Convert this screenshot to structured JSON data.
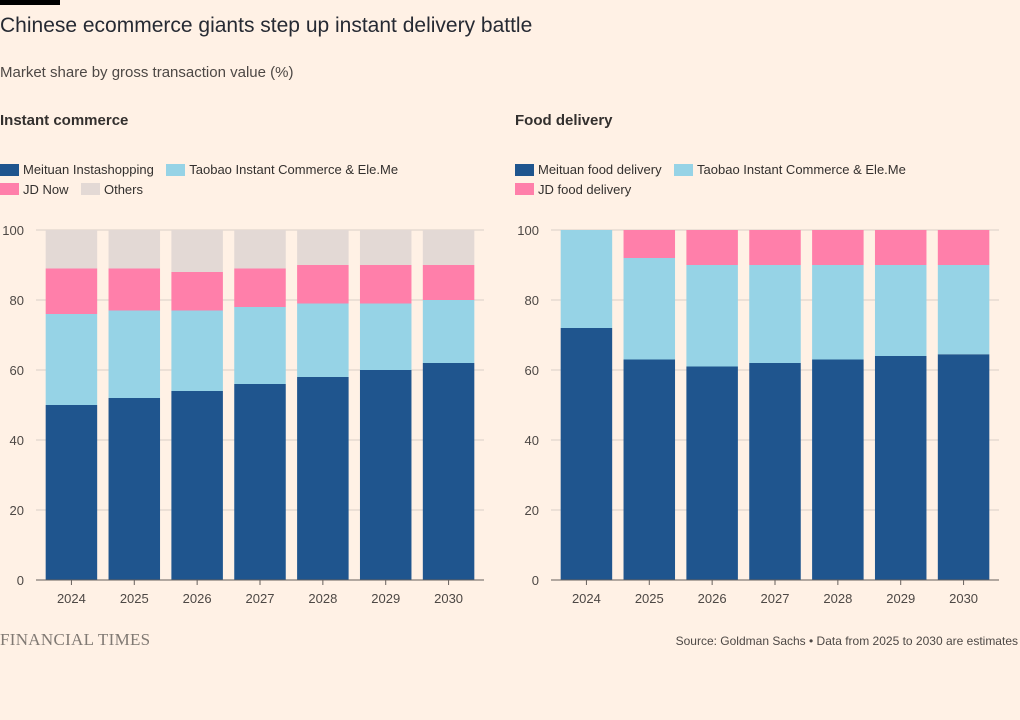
{
  "header": {
    "title": "Chinese ecommerce giants step up instant delivery battle",
    "subtitle": "Market share by gross transaction value (%)"
  },
  "footer": {
    "logo": "FINANCIAL TIMES",
    "source": "Source: Goldman Sachs • Data from 2025 to 2030 are estimates"
  },
  "chart_data": [
    {
      "type": "bar",
      "stacked": true,
      "title": "Instant commerce",
      "categories": [
        "2024",
        "2025",
        "2026",
        "2027",
        "2028",
        "2029",
        "2030"
      ],
      "ylim": [
        0,
        100
      ],
      "yticks": [
        0,
        20,
        40,
        60,
        80,
        100
      ],
      "grid": true,
      "legend_position": "top-left",
      "series": [
        {
          "name": "Meituan Instashopping",
          "color": "#1F558E",
          "values": [
            50,
            52,
            54,
            56,
            58,
            60,
            62
          ]
        },
        {
          "name": "Taobao Instant Commerce & Ele.Me",
          "color": "#96D3E6",
          "values": [
            26,
            25,
            23,
            22,
            21,
            19,
            18
          ]
        },
        {
          "name": "JD Now",
          "color": "#FF7FAA",
          "values": [
            13,
            12,
            11,
            11,
            11,
            11,
            10
          ]
        },
        {
          "name": "Others",
          "color": "#E3D9D5",
          "values": [
            11,
            11,
            12,
            11,
            10,
            10,
            10
          ]
        }
      ]
    },
    {
      "type": "bar",
      "stacked": true,
      "title": "Food delivery",
      "categories": [
        "2024",
        "2025",
        "2026",
        "2027",
        "2028",
        "2029",
        "2030"
      ],
      "ylim": [
        0,
        100
      ],
      "yticks": [
        0,
        20,
        40,
        60,
        80,
        100
      ],
      "grid": true,
      "legend_position": "top-left",
      "series": [
        {
          "name": "Meituan food delivery",
          "color": "#1F558E",
          "values": [
            72,
            63,
            61,
            62,
            63,
            64,
            64.5
          ]
        },
        {
          "name": "Taobao Instant Commerce & Ele.Me",
          "color": "#96D3E6",
          "values": [
            28,
            29,
            29,
            28,
            27,
            26,
            25.5
          ]
        },
        {
          "name": "JD food delivery",
          "color": "#FF7FAA",
          "values": [
            0,
            8,
            10,
            10,
            10,
            10,
            10
          ]
        }
      ]
    }
  ]
}
